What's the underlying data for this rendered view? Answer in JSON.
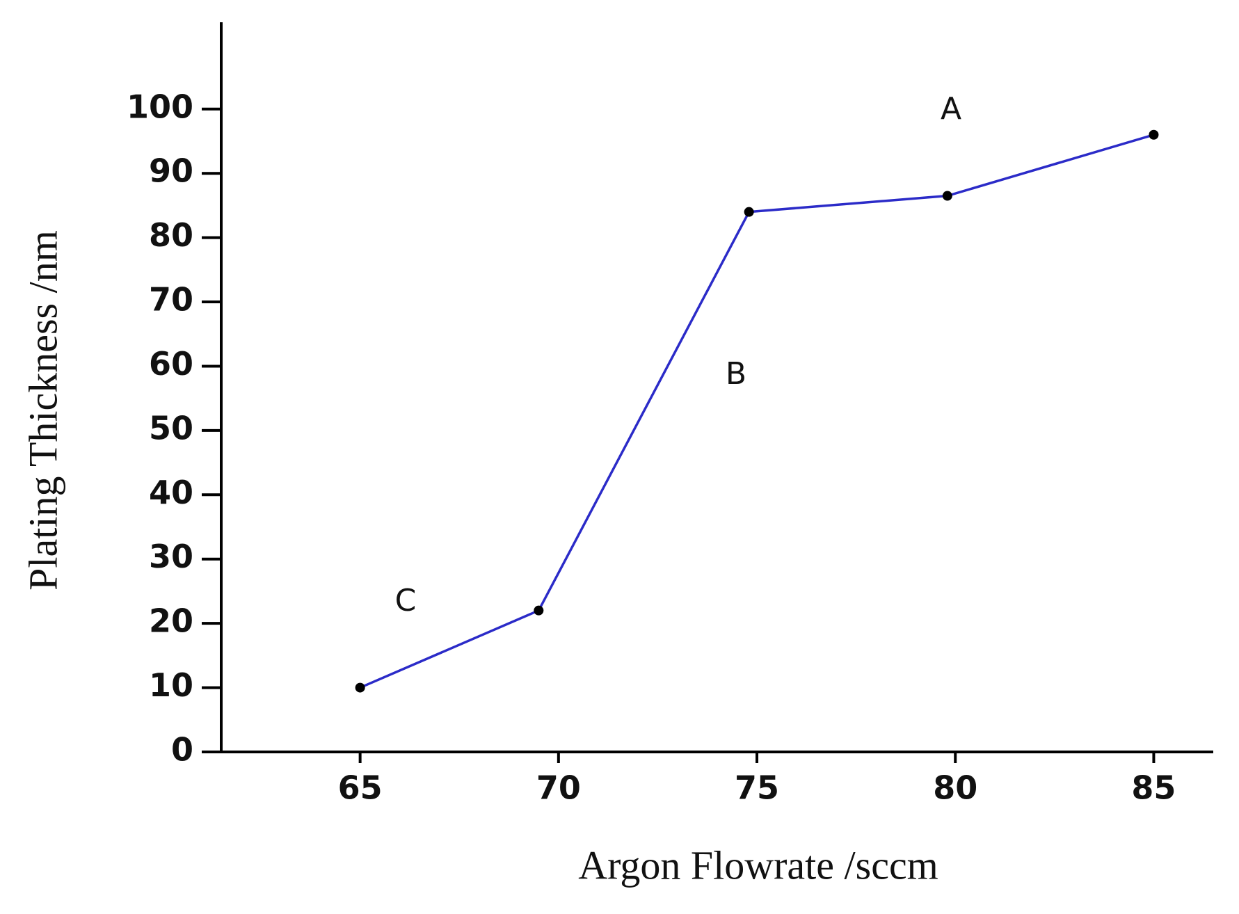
{
  "chart_data": {
    "type": "line",
    "x_label": "Argon Flowrate  /sccm",
    "y_label": "Plating Thickness /nm",
    "annotations": [
      "A",
      "B",
      "C"
    ],
    "x": [
      65,
      69.5,
      74.8,
      79.8,
      85
    ],
    "values": [
      10,
      22,
      84,
      86.5,
      96
    ],
    "color": "#2b2bc8",
    "marker_color": "#000000",
    "xlim": [
      61.5,
      86.5
    ],
    "xticks": [
      65,
      70,
      75,
      80,
      85
    ],
    "ylim": [
      0,
      113.5
    ],
    "yticks": [
      0,
      10,
      20,
      30,
      40,
      50,
      60,
      70,
      80,
      90,
      100
    ],
    "grid": false
  }
}
